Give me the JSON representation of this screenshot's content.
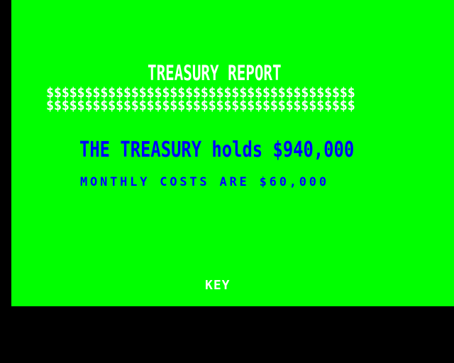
{
  "colors": {
    "border": "#000000",
    "screen_background": "#00ff00",
    "title_text": "#ffffff",
    "report_text": "#0000ff",
    "prompt_text": "#ffffff"
  },
  "report": {
    "title": "TREASURY REPORT",
    "dollar_row_1": "$$$$$$$$$$$$$$$$$$$$$$$$$$$$$$$$$$$$$$$$",
    "dollar_row_2": "$$$$$$$$$$$$$$$$$$$$$$$$$$$$$$$$$$$$$$$$",
    "holdings": "THE TREASURY holds $940,000",
    "monthly_costs": "MONTHLY COSTS ARE $60,000"
  },
  "prompt": {
    "label": "KEY"
  }
}
